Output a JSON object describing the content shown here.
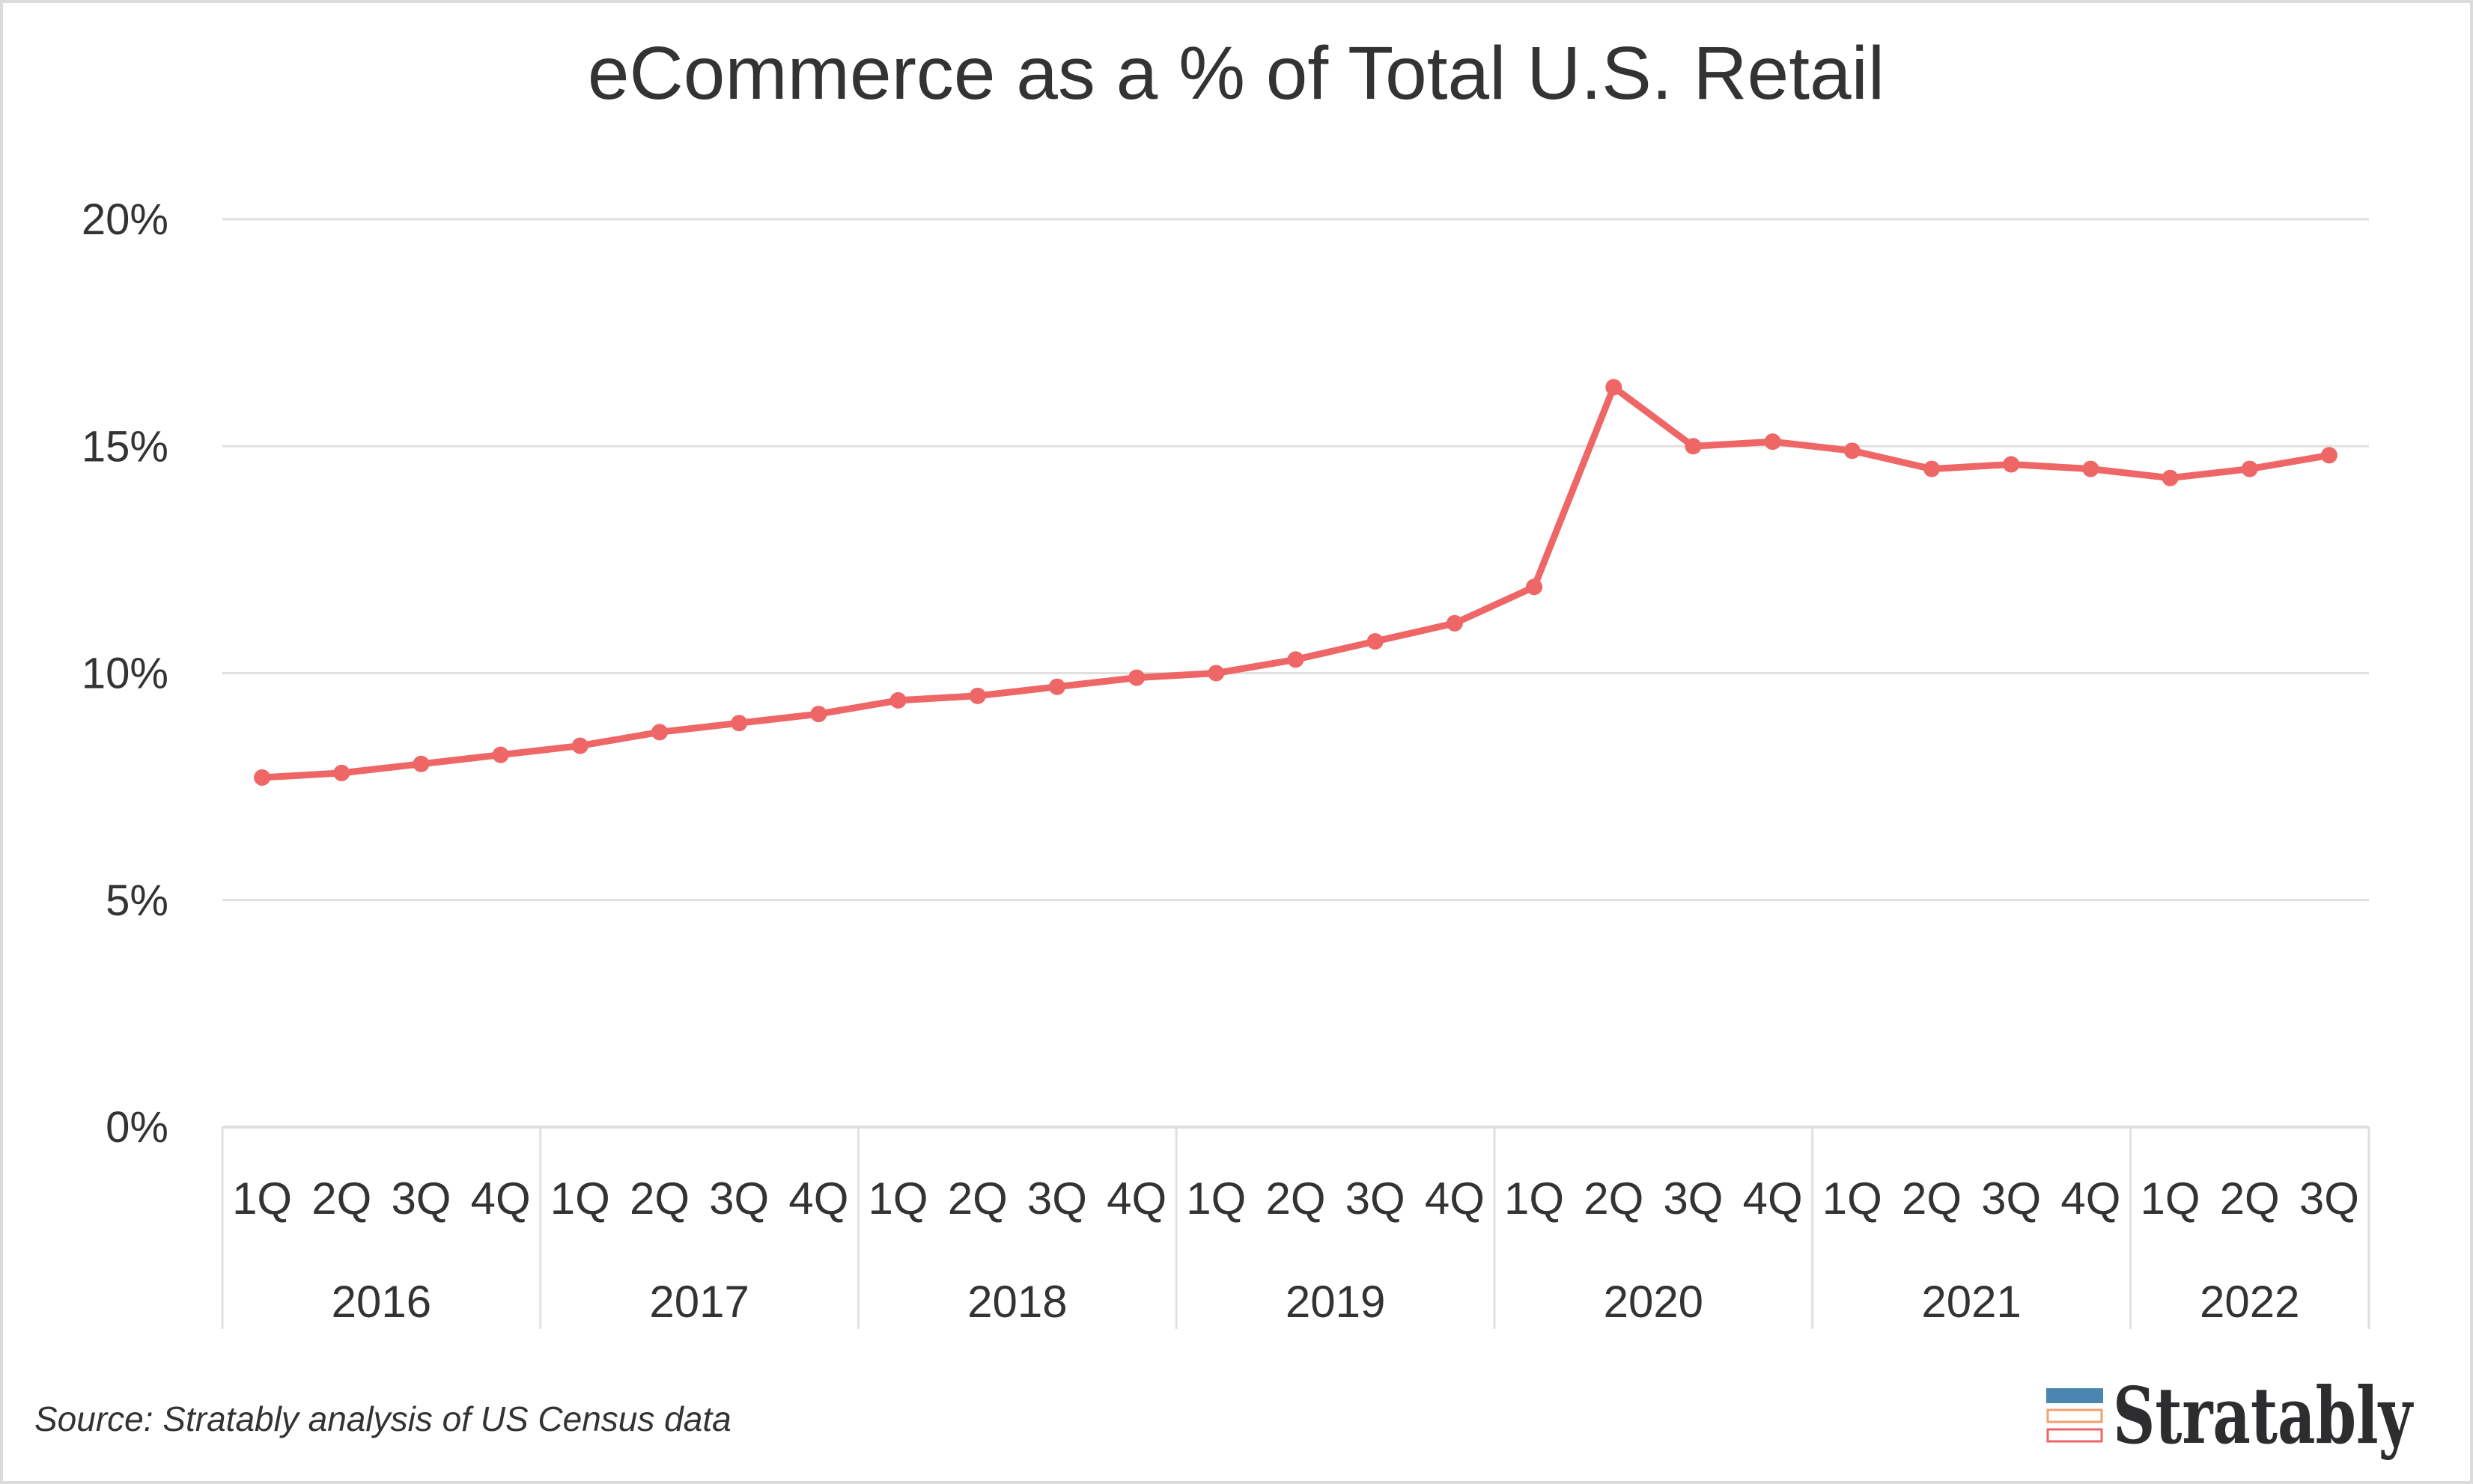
{
  "chart_data": {
    "type": "line",
    "title": "eCommerce as a % of Total U.S. Retail",
    "xlabel": "",
    "ylabel": "",
    "ylim": [
      0,
      20
    ],
    "yticks": [
      0,
      5,
      10,
      15,
      20
    ],
    "ytick_labels": [
      "0%",
      "5%",
      "10%",
      "15%",
      "20%"
    ],
    "grid": true,
    "legend": "none",
    "x_quarter_labels": [
      "1Q",
      "2Q",
      "3Q",
      "4Q",
      "1Q",
      "2Q",
      "3Q",
      "4Q",
      "1Q",
      "2Q",
      "3Q",
      "4Q",
      "1Q",
      "2Q",
      "3Q",
      "4Q",
      "1Q",
      "2Q",
      "3Q",
      "4Q",
      "1Q",
      "2Q",
      "3Q",
      "4Q",
      "1Q",
      "2Q",
      "3Q"
    ],
    "x_year_groups": [
      {
        "label": "2016",
        "count": 4
      },
      {
        "label": "2017",
        "count": 4
      },
      {
        "label": "2018",
        "count": 4
      },
      {
        "label": "2019",
        "count": 4
      },
      {
        "label": "2020",
        "count": 4
      },
      {
        "label": "2021",
        "count": 4
      },
      {
        "label": "2022",
        "count": 3
      }
    ],
    "series": [
      {
        "name": "eCommerce % of Total U.S. Retail",
        "color": "#EE6666",
        "values": [
          7.7,
          7.8,
          8.0,
          8.2,
          8.4,
          8.7,
          8.9,
          9.1,
          9.4,
          9.5,
          9.7,
          9.9,
          10.0,
          10.3,
          10.7,
          11.1,
          11.9,
          16.3,
          15.0,
          15.1,
          14.9,
          14.5,
          14.6,
          14.5,
          14.3,
          14.5,
          14.8
        ]
      }
    ]
  },
  "footer": {
    "source": "Source: Stratably analysis of US Census data"
  },
  "logo": {
    "text": "Stratably",
    "colors": [
      "#4A86B0",
      "#F2A06E",
      "#EE6666"
    ]
  },
  "colors": {
    "line": "#EE6666",
    "grid": "#e0e0e0",
    "text": "#333333"
  }
}
